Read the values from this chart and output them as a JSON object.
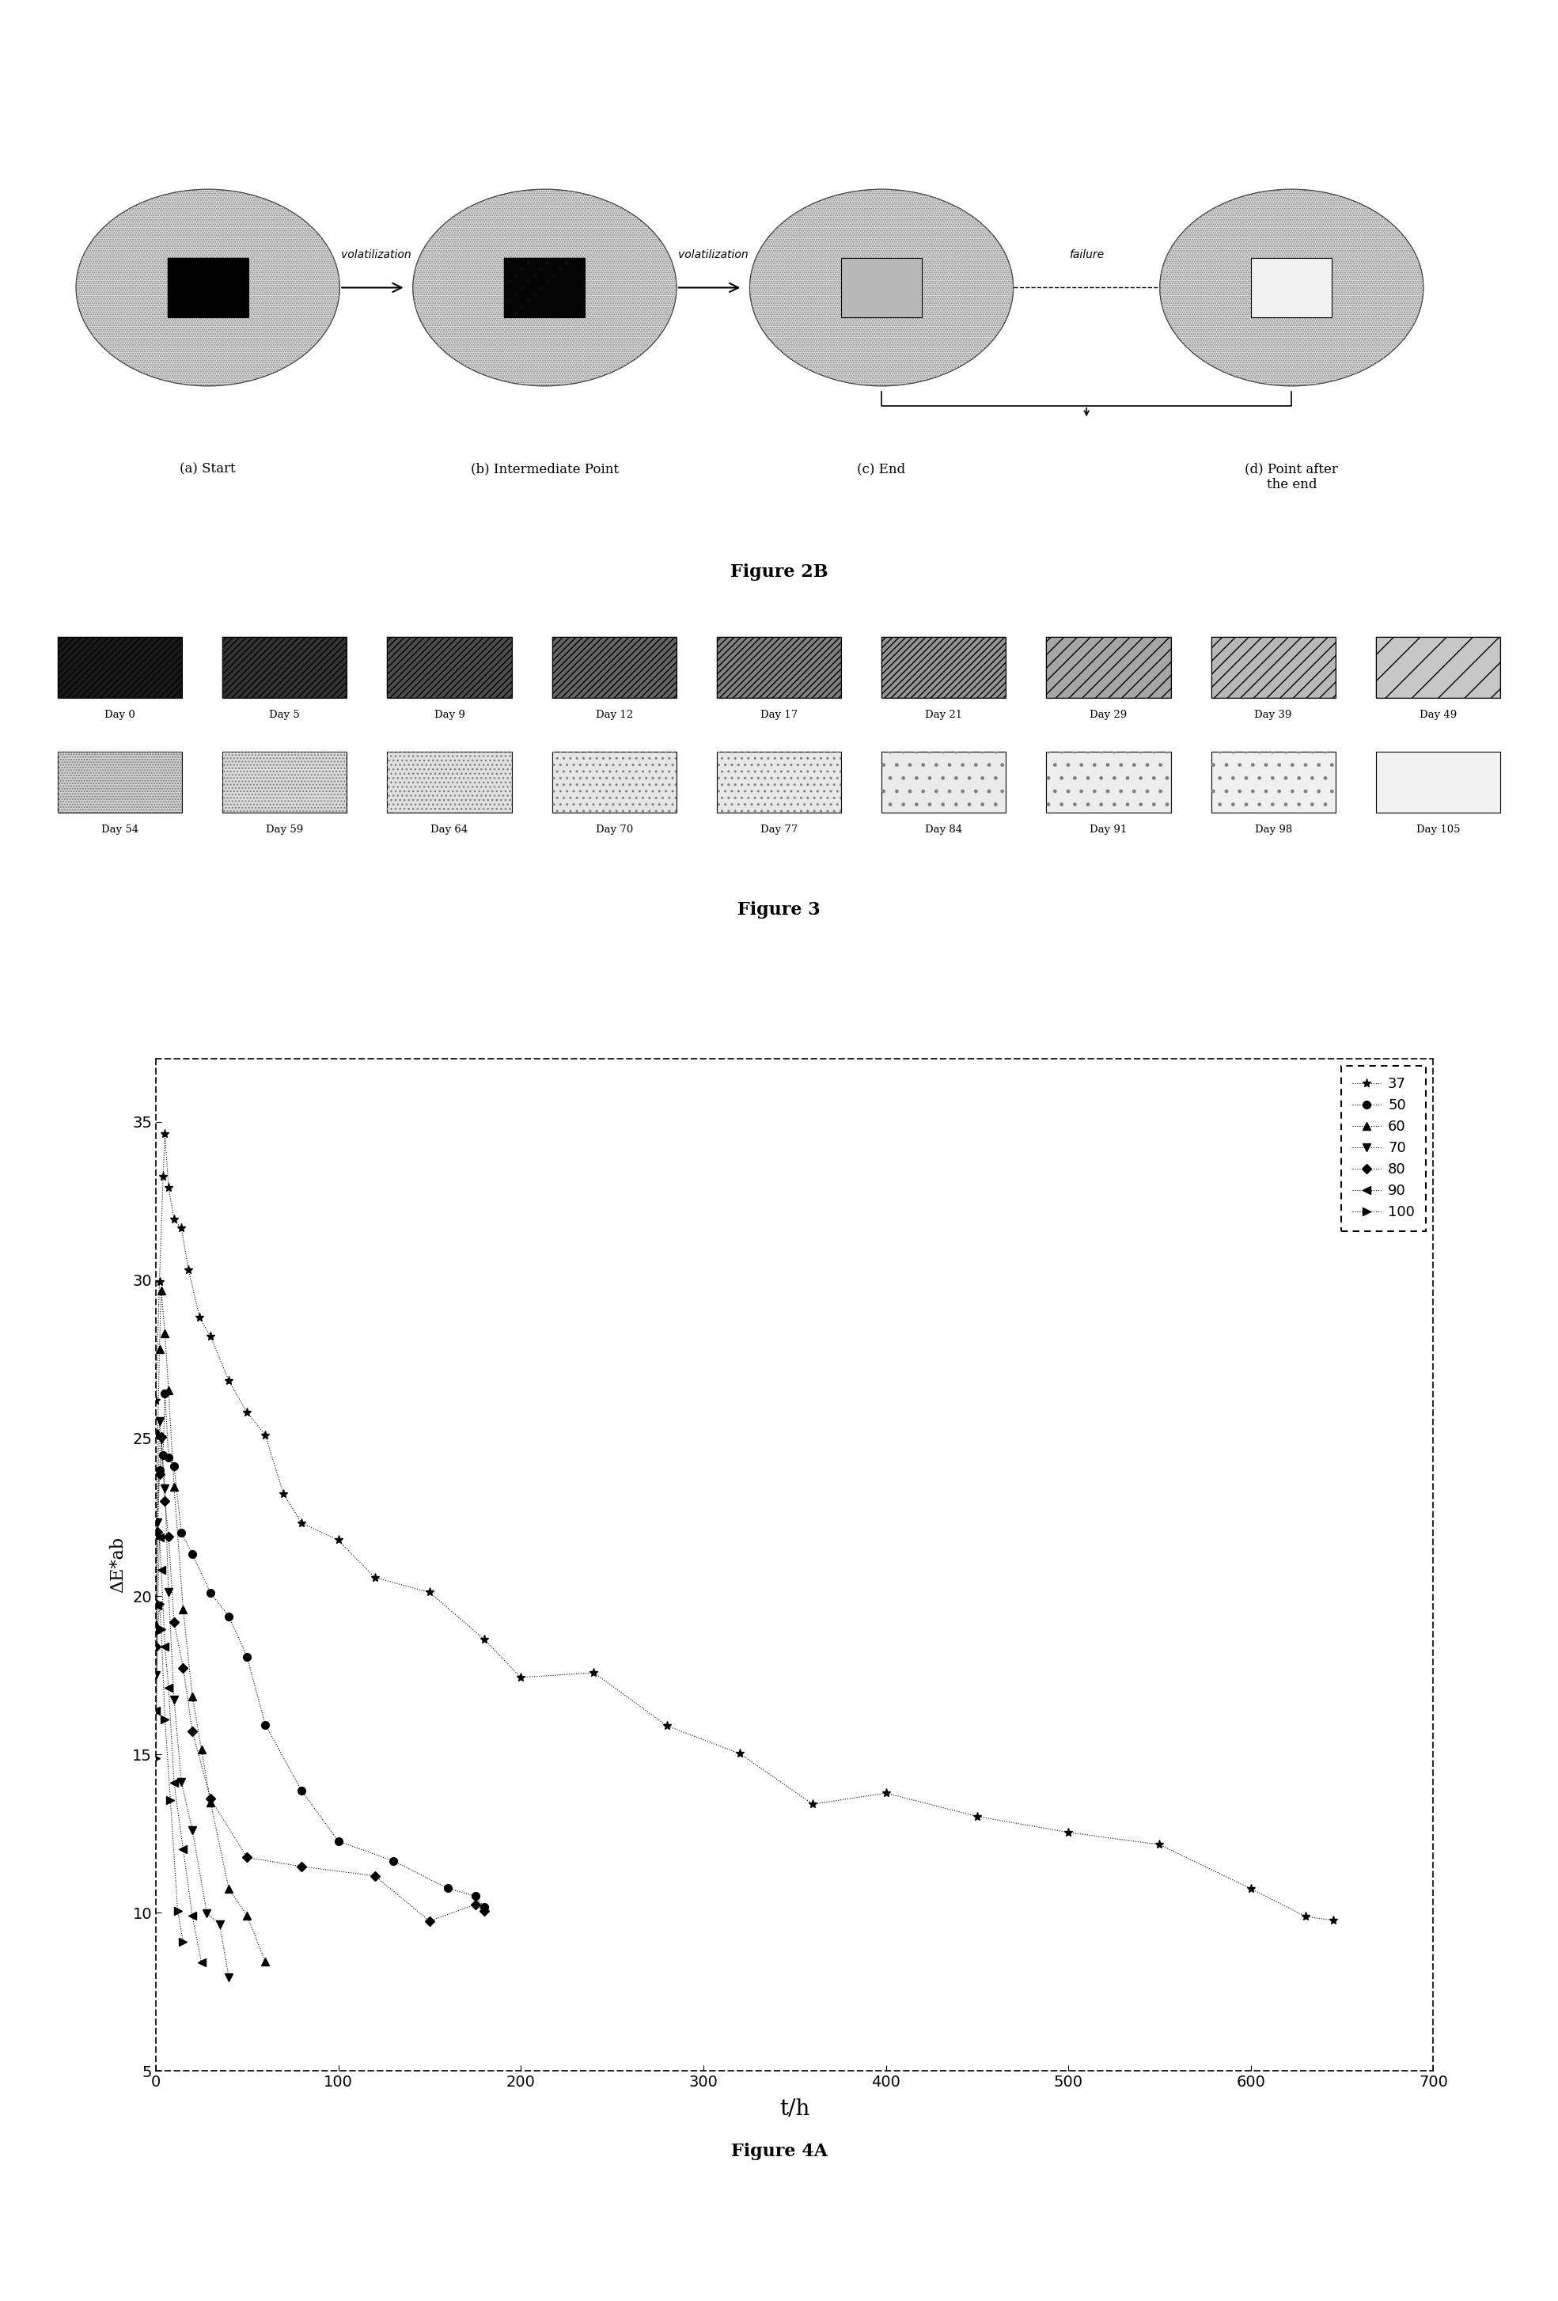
{
  "fig2b_labels_row1": [
    "Day 0",
    "Day 5",
    "Day 9",
    "Day 12",
    "Day 17",
    "Day 21",
    "Day 29",
    "Day 39",
    "Day 49"
  ],
  "fig2b_labels_row2": [
    "Day 54",
    "Day 59",
    "Day 64",
    "Day 70",
    "Day 77",
    "Day 84",
    "Day 91",
    "Day 98",
    "Day 105"
  ],
  "fig2b_hatch_row1": [
    "////",
    "////",
    "////",
    "////",
    "////",
    "////",
    "////",
    "////",
    "////"
  ],
  "fig2b_grays_row1": [
    0.1,
    0.2,
    0.3,
    0.4,
    0.5,
    0.58,
    0.65,
    0.72,
    0.78
  ],
  "fig2b_grays_row2": [
    0.82,
    0.86,
    0.88,
    0.9,
    0.91,
    0.92,
    0.93,
    0.94,
    0.95
  ],
  "figure_label_2b": "Figure 2B",
  "figure_label_3": "Figure 3",
  "figure_label_4a": "Figure 4A",
  "panel_labels": [
    "(a) Start",
    "(b) Intermediate Point",
    "(c) End",
    "(d) Point after\nthe end"
  ],
  "arrow_labels_h": [
    "volatilization",
    "volatilization"
  ],
  "arrow_label_fail": "failure",
  "legend_temps": [
    "37",
    "50",
    "60",
    "70",
    "80",
    "90",
    "100"
  ],
  "ylabel_4a": "ΔE*ab",
  "xlabel_4a": "t/h",
  "ylim_4a": [
    5,
    37
  ],
  "xlim_4a": [
    0,
    700
  ],
  "yticks_4a": [
    5,
    10,
    15,
    20,
    25,
    30,
    35
  ],
  "xticks_4a": [
    0,
    100,
    200,
    300,
    400,
    500,
    600,
    700
  ],
  "circle_outer_color": "0.82",
  "circle_inner_colors": [
    "0.12",
    "0.35",
    "0.72",
    "0.95"
  ],
  "circle_inner_hatches": [
    "////",
    "////",
    "",
    ""
  ],
  "background_color": "#ffffff"
}
